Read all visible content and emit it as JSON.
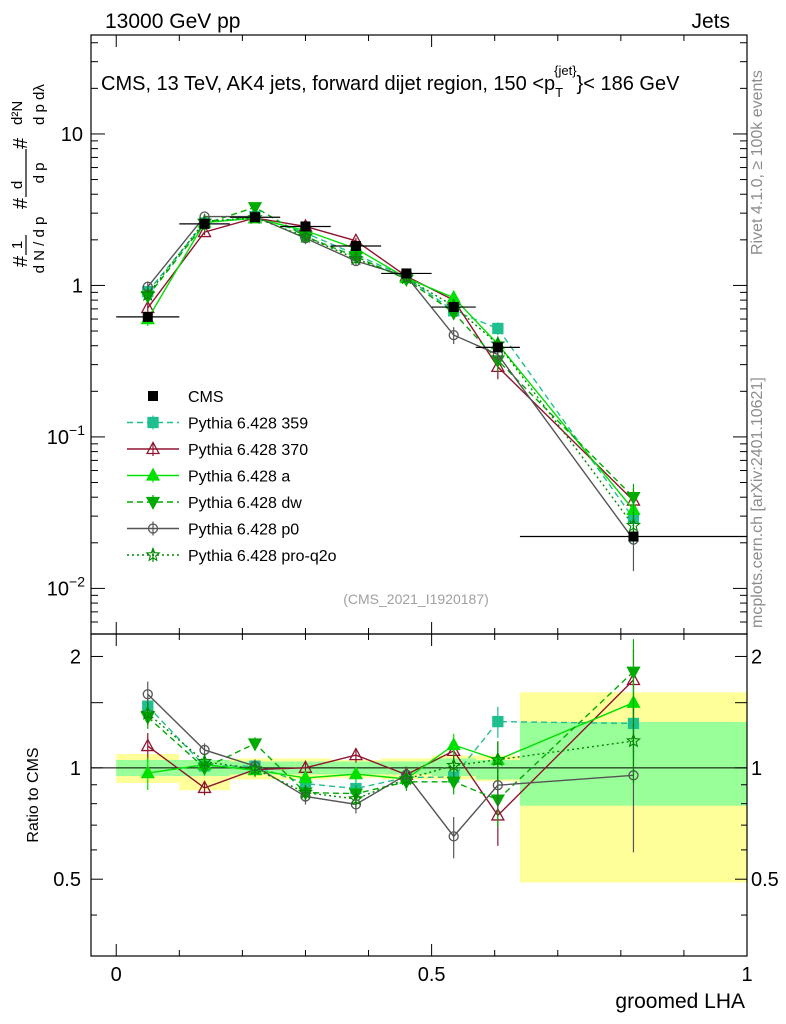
{
  "header": {
    "left": "13000 GeV pp",
    "right": "Jets"
  },
  "chart_data": {
    "type": "line",
    "title": "CMS, 13 TeV, AK4 jets, forward dijet region, 150 <p_T^{jet}< 186 GeV",
    "title_parts": {
      "main": "CMS, 13 TeV, AK4 jets, forward dijet region, 150 <p",
      "sub": "T",
      "sup": "{jet}",
      "tail": "}< 186 GeV"
    },
    "watermark": "(CMS_2021_I1920187)",
    "side_label_1": "Rivet 4.1.0, ≥ 100k events",
    "side_label_2": "mcplots.cern.ch [arXiv:2401.10621]",
    "xlabel": "groomed LHA",
    "ylabel_main": "1/N dN/dp_T dλ",
    "ylabel_ratio": "Ratio to CMS",
    "xlim": [
      -0.04,
      1.0
    ],
    "ylim_main": [
      0.005,
      45
    ],
    "ylim_ratio": [
      0.31,
      2.3
    ],
    "xticks": [
      0,
      0.5,
      1
    ],
    "xtick_labels": [
      "0",
      "0.5",
      "1"
    ],
    "main_ticks": [
      {
        "value": 10,
        "label": "10"
      },
      {
        "value": 1,
        "label": "1"
      },
      {
        "value": 0.1,
        "label": "10",
        "exp": "−1"
      },
      {
        "value": 0.01,
        "label": "10",
        "exp": "−2"
      }
    ],
    "ratio_ticks": [
      {
        "value": 2,
        "label": "2"
      },
      {
        "value": 1,
        "label": "1"
      },
      {
        "value": 0.5,
        "label": "0.5"
      }
    ],
    "bins": [
      {
        "lo": 0.0,
        "hi": 0.1,
        "center": 0.05,
        "data": 0.62,
        "stat": [
          0.95,
          1.05
        ],
        "total": [
          0.91,
          1.09
        ]
      },
      {
        "lo": 0.1,
        "hi": 0.18,
        "center": 0.14,
        "data": 2.55,
        "stat": [
          0.95,
          1.05
        ],
        "total": [
          0.87,
          1.05
        ]
      },
      {
        "lo": 0.18,
        "hi": 0.26,
        "center": 0.22,
        "data": 2.82,
        "stat": [
          0.96,
          1.04
        ],
        "total": [
          0.93,
          1.06
        ]
      },
      {
        "lo": 0.26,
        "hi": 0.34,
        "center": 0.3,
        "data": 2.45,
        "stat": [
          0.96,
          1.04
        ],
        "total": [
          0.93,
          1.06
        ]
      },
      {
        "lo": 0.34,
        "hi": 0.42,
        "center": 0.38,
        "data": 1.82,
        "stat": [
          0.96,
          1.04
        ],
        "total": [
          0.94,
          1.05
        ]
      },
      {
        "lo": 0.42,
        "hi": 0.5,
        "center": 0.46,
        "data": 1.2,
        "stat": [
          0.96,
          1.04
        ],
        "total": [
          0.93,
          1.06
        ]
      },
      {
        "lo": 0.5,
        "hi": 0.57,
        "center": 0.535,
        "data": 0.72,
        "stat": [
          0.95,
          1.06
        ],
        "total": [
          0.93,
          1.08
        ]
      },
      {
        "lo": 0.57,
        "hi": 0.64,
        "center": 0.605,
        "data": 0.39,
        "stat": [
          0.93,
          1.05
        ],
        "total": [
          0.92,
          1.08
        ]
      },
      {
        "lo": 0.64,
        "hi": 1.0,
        "center": 0.82,
        "data": 0.022,
        "stat": [
          0.79,
          1.33
        ],
        "total": [
          0.49,
          1.6
        ]
      }
    ],
    "series": [
      {
        "name": "Pythia 6.428 359",
        "color": "#1fbf8f",
        "dash": "6,4",
        "marker": "square",
        "filled": true,
        "values": [
          0.91,
          2.58,
          2.85,
          2.22,
          1.6,
          1.13,
          0.68,
          0.52,
          0.029
        ],
        "errors": [
          0.06,
          0.12,
          0.12,
          0.1,
          0.08,
          0.06,
          0.05,
          0.05,
          0.005
        ]
      },
      {
        "name": "Pythia 6.428 370",
        "color": "#8f1530",
        "dash": "",
        "marker": "triangle",
        "filled": false,
        "values": [
          0.71,
          2.25,
          2.79,
          2.45,
          1.97,
          1.15,
          0.8,
          0.29,
          0.038
        ],
        "errors": [
          0.06,
          0.1,
          0.12,
          0.1,
          0.09,
          0.06,
          0.06,
          0.05,
          0.008
        ]
      },
      {
        "name": "Pythia 6.428 a",
        "color": "#00e000",
        "dash": "",
        "marker": "triangle",
        "filled": true,
        "values": [
          0.6,
          2.6,
          2.78,
          2.3,
          1.75,
          1.12,
          0.83,
          0.41,
          0.033
        ],
        "errors": [
          0.06,
          0.12,
          0.12,
          0.1,
          0.08,
          0.06,
          0.06,
          0.05,
          0.007
        ]
      },
      {
        "name": "Pythia 6.428 dw",
        "color": "#00aa00",
        "dash": "6,4",
        "marker": "triangledown",
        "filled": true,
        "values": [
          0.85,
          2.55,
          3.28,
          2.1,
          1.55,
          1.1,
          0.66,
          0.32,
          0.04
        ],
        "errors": [
          0.06,
          0.12,
          0.13,
          0.1,
          0.08,
          0.06,
          0.05,
          0.05,
          0.009
        ]
      },
      {
        "name": "Pythia 6.428 p0",
        "color": "#555555",
        "dash": "",
        "marker": "circle",
        "filled": false,
        "values": [
          0.98,
          2.85,
          2.85,
          2.05,
          1.45,
          1.15,
          0.47,
          0.35,
          0.021
        ],
        "errors": [
          0.08,
          0.12,
          0.12,
          0.1,
          0.08,
          0.06,
          0.06,
          0.05,
          0.008
        ]
      },
      {
        "name": "Pythia 6.428 pro-q2o",
        "color": "#008800",
        "dash": "2,3",
        "marker": "star",
        "filled": false,
        "values": [
          0.87,
          2.65,
          2.8,
          2.1,
          1.5,
          1.12,
          0.73,
          0.41,
          0.026
        ],
        "errors": [
          0.06,
          0.12,
          0.12,
          0.1,
          0.08,
          0.06,
          0.05,
          0.05,
          0.006
        ]
      }
    ],
    "legend": {
      "placement": "center-left",
      "data_label": "CMS"
    }
  }
}
